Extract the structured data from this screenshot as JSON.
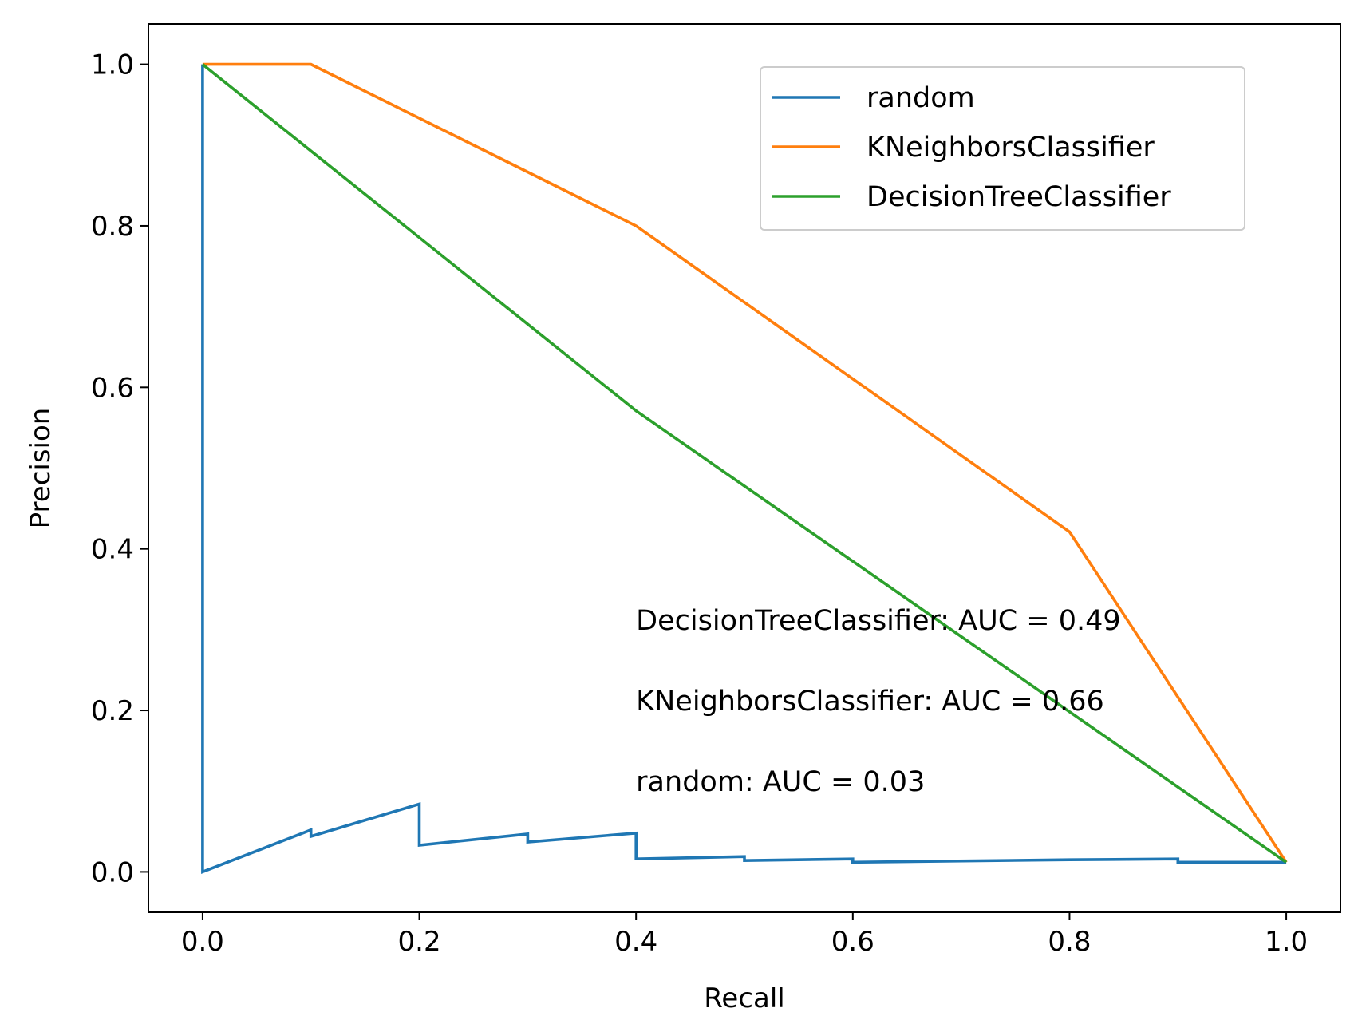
{
  "chart_data": {
    "type": "line",
    "xlabel": "Recall",
    "ylabel": "Precision",
    "xlim": [
      -0.05,
      1.05
    ],
    "ylim": [
      -0.05,
      1.05
    ],
    "xticks": [
      "0.0",
      "0.2",
      "0.4",
      "0.6",
      "0.8",
      "1.0"
    ],
    "yticks": [
      "0.0",
      "0.2",
      "0.4",
      "0.6",
      "0.8",
      "1.0"
    ],
    "grid": false,
    "legend_position": "top-right",
    "series": [
      {
        "name": "random",
        "color": "#1f77b4",
        "x": [
          0.0,
          0.0,
          0.1,
          0.1,
          0.2,
          0.2,
          0.3,
          0.3,
          0.4,
          0.4,
          0.5,
          0.5,
          0.6,
          0.6,
          0.8,
          0.9,
          0.9,
          1.0
        ],
        "y": [
          1.0,
          0.0,
          0.052,
          0.044,
          0.084,
          0.033,
          0.047,
          0.037,
          0.048,
          0.016,
          0.019,
          0.014,
          0.016,
          0.012,
          0.015,
          0.016,
          0.012,
          0.012
        ]
      },
      {
        "name": "KNeighborsClassifier",
        "color": "#ff7f0e",
        "x": [
          0.0,
          0.1,
          0.4,
          0.8,
          1.0
        ],
        "y": [
          1.0,
          1.0,
          0.8,
          0.421,
          0.012
        ]
      },
      {
        "name": "DecisionTreeClassifier",
        "color": "#2ca02c",
        "x": [
          0.0,
          0.4,
          1.0
        ],
        "y": [
          1.0,
          0.571,
          0.012
        ]
      }
    ],
    "annotations": [
      {
        "text": "DecisionTreeClassifier: AUC = 0.49",
        "x": 0.4,
        "y": 0.3
      },
      {
        "text": "KNeighborsClassifier: AUC = 0.66",
        "x": 0.4,
        "y": 0.2
      },
      {
        "text": "random: AUC = 0.03",
        "x": 0.4,
        "y": 0.1
      }
    ]
  }
}
